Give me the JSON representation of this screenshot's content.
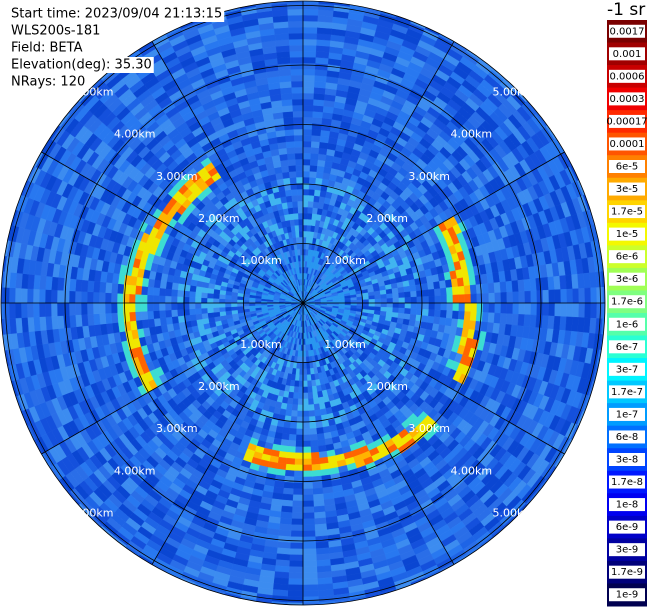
{
  "header": {
    "lines": [
      "Start time: 2023/09/04 21:13:15",
      "WLS200s-181",
      "Field: BETA",
      "Elevation(deg): 35.30",
      "NRays: 120"
    ]
  },
  "range_rings": {
    "labels": [
      "1.00km",
      "2.00km",
      "3.00km",
      "4.00km",
      "5.00km"
    ]
  },
  "colorbar": {
    "unit": "-1 sr",
    "labels": [
      "0.0017",
      "0.001",
      "0.0006",
      "0.0003",
      "0.00017",
      "0.0001",
      "6e-5",
      "3e-5",
      "1.7e-5",
      "1e-5",
      "6e-6",
      "3e-6",
      "1.7e-6",
      "1e-6",
      "6e-7",
      "3e-7",
      "1.7e-7",
      "1e-7",
      "6e-8",
      "3e-8",
      "1.7e-8",
      "1e-8",
      "6e-9",
      "3e-9",
      "1.7e-9",
      "1e-9"
    ],
    "colors": [
      "#7a0000",
      "#a00000",
      "#c80000",
      "#f00000",
      "#ff2a00",
      "#ff5500",
      "#ff8000",
      "#ffaa00",
      "#ffd400",
      "#f4f800",
      "#ccff2a",
      "#a0ff55",
      "#7fff80",
      "#55ffaa",
      "#2affd4",
      "#00f4ff",
      "#00c8ff",
      "#009cff",
      "#0070ff",
      "#0044ff",
      "#0018ff",
      "#0000f0",
      "#0000c8",
      "#0000a0",
      "#00007a",
      "#000050"
    ]
  }
}
